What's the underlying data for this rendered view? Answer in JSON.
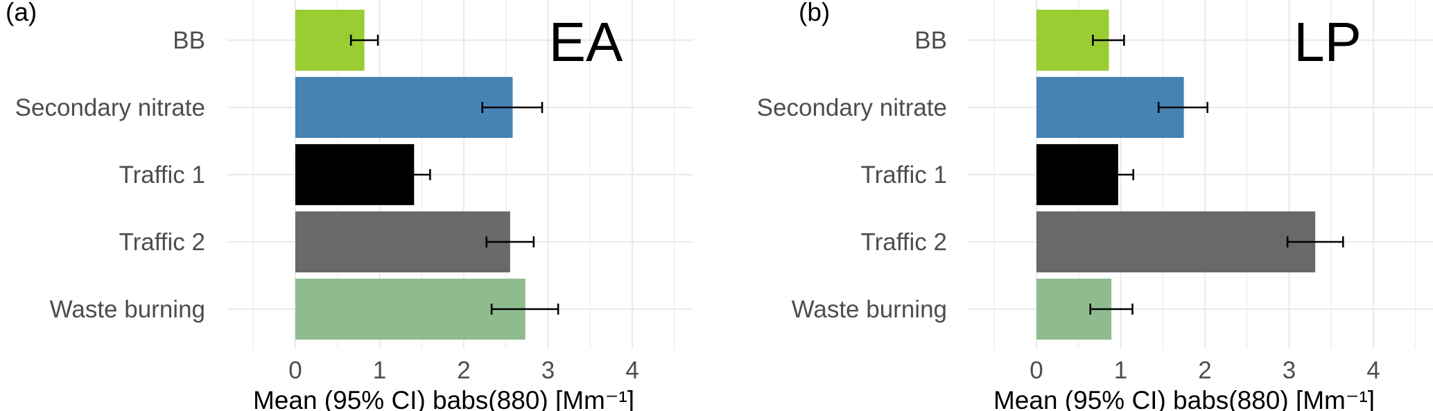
{
  "chart_data": [
    {
      "type": "bar",
      "orientation": "horizontal",
      "panel_tag": "(a)",
      "title": "EA",
      "xlabel": "Mean (95% CI) babs(880) [Mm⁻¹]",
      "ylabel": "",
      "categories": [
        "BB",
        "Secondary nitrate",
        "Traffic 1",
        "Traffic 2",
        "Waste burning"
      ],
      "values": [
        0.82,
        2.58,
        1.41,
        2.55,
        2.73
      ],
      "ci_low": [
        0.66,
        2.22,
        1.28,
        2.27,
        2.33
      ],
      "ci_high": [
        0.98,
        2.93,
        1.6,
        2.83,
        3.12
      ],
      "colors": [
        "#9acd32",
        "#4682b4",
        "#000000",
        "#696969",
        "#8fbc8f"
      ],
      "xlim": [
        -0.5,
        4.65
      ],
      "xticks": [
        0,
        1,
        2,
        3,
        4
      ],
      "grid": true,
      "legend": "none"
    },
    {
      "type": "bar",
      "orientation": "horizontal",
      "panel_tag": "(b)",
      "title": "LP",
      "xlabel": "Mean (95% CI) babs(880) [Mm⁻¹]",
      "ylabel": "",
      "categories": [
        "BB",
        "Secondary nitrate",
        "Traffic 1",
        "Traffic 2",
        "Waste burning"
      ],
      "values": [
        0.86,
        1.75,
        0.97,
        3.31,
        0.89
      ],
      "ci_low": [
        0.67,
        1.45,
        0.81,
        2.98,
        0.64
      ],
      "ci_high": [
        1.04,
        2.03,
        1.15,
        3.64,
        1.14
      ],
      "colors": [
        "#9acd32",
        "#4682b4",
        "#000000",
        "#696969",
        "#8fbc8f"
      ],
      "xlim": [
        -0.5,
        4.65
      ],
      "xticks": [
        0,
        1,
        2,
        3,
        4
      ],
      "grid": true,
      "legend": "none"
    }
  ]
}
